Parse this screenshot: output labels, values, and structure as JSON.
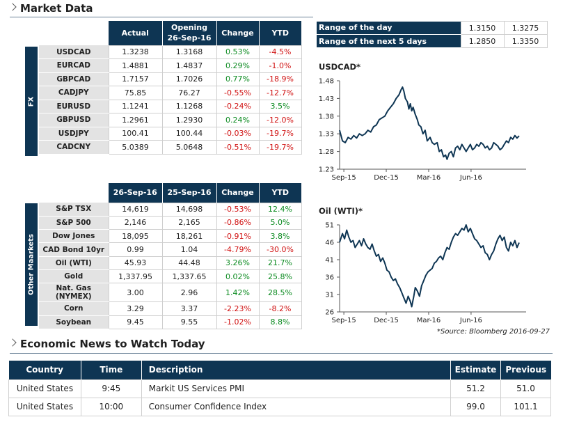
{
  "headings": {
    "market_data": "Market Data",
    "economic_news": "Economic News to Watch Today"
  },
  "colors": {
    "header_bg": "#0e3553",
    "label_bg": "#e3e3e3",
    "positive": "#0a8a1f",
    "negative": "#d01010"
  },
  "fx": {
    "side_label": "FX",
    "headers": {
      "actual": "Actual",
      "opening": "Opening",
      "opening_date": "26-Sep-16",
      "change": "Change",
      "ytd": "YTD"
    },
    "rows": [
      {
        "name": "USDCAD",
        "actual": "1.3238",
        "opening": "1.3168",
        "change": "0.53%",
        "ytd": "-4.5%"
      },
      {
        "name": "EURCAD",
        "actual": "1.4881",
        "opening": "1.4837",
        "change": "0.29%",
        "ytd": "-1.0%"
      },
      {
        "name": "GBPCAD",
        "actual": "1.7157",
        "opening": "1.7026",
        "change": "0.77%",
        "ytd": "-18.9%"
      },
      {
        "name": "CADJPY",
        "actual": "75.85",
        "opening": "76.27",
        "change": "-0.55%",
        "ytd": "-12.7%"
      },
      {
        "name": "EURUSD",
        "actual": "1.1241",
        "opening": "1.1268",
        "change": "-0.24%",
        "ytd": "3.5%"
      },
      {
        "name": "GBPUSD",
        "actual": "1.2961",
        "opening": "1.2930",
        "change": "0.24%",
        "ytd": "-12.0%"
      },
      {
        "name": "USDJPY",
        "actual": "100.41",
        "opening": "100.44",
        "change": "-0.03%",
        "ytd": "-19.7%"
      },
      {
        "name": "CADCNY",
        "actual": "5.0389",
        "opening": "5.0648",
        "change": "-0.51%",
        "ytd": "-19.7%"
      }
    ]
  },
  "other": {
    "side_label": "Other Maarkets",
    "headers": {
      "d1": "26-Sep-16",
      "d2": "25-Sep-16",
      "change": "Change",
      "ytd": "YTD"
    },
    "rows": [
      {
        "name": "S&P TSX",
        "d1": "14,619",
        "d2": "14,698",
        "change": "-0.53%",
        "ytd": "12.4%"
      },
      {
        "name": "S&P 500",
        "d1": "2,146",
        "d2": "2,165",
        "change": "-0.86%",
        "ytd": "5.0%"
      },
      {
        "name": "Dow Jones",
        "d1": "18,095",
        "d2": "18,261",
        "change": "-0.91%",
        "ytd": "3.8%"
      },
      {
        "name": "CAD Bond 10yr",
        "d1": "0.99",
        "d2": "1.04",
        "change": "-4.79%",
        "ytd": "-30.0%"
      },
      {
        "name": "Oil (WTI)",
        "d1": "45.93",
        "d2": "44.48",
        "change": "3.26%",
        "ytd": "21.7%"
      },
      {
        "name": "Gold",
        "d1": "1,337.95",
        "d2": "1,337.65",
        "change": "0.02%",
        "ytd": "25.8%"
      },
      {
        "name": "Nat. Gas (NYMEX)",
        "d1": "3.00",
        "d2": "2.96",
        "change": "1.42%",
        "ytd": "28.5%"
      },
      {
        "name": "Corn",
        "d1": "3.29",
        "d2": "3.37",
        "change": "-2.23%",
        "ytd": "-8.2%"
      },
      {
        "name": "Soybean",
        "d1": "9.45",
        "d2": "9.55",
        "change": "-1.02%",
        "ytd": "8.8%"
      }
    ]
  },
  "range": {
    "rows": [
      {
        "label": "Range of the day",
        "low": "1.3150",
        "high": "1.3275"
      },
      {
        "label": "Range of the next 5 days",
        "low": "1.2850",
        "high": "1.3350"
      }
    ]
  },
  "source_note": "*Source: Bloomberg  2016-09-27",
  "chart_data": [
    {
      "type": "line",
      "title": "USDCAD*",
      "xlabel": "",
      "ylabel": "",
      "x_ticks": [
        "Sep-15",
        "Dec-15",
        "Mar-16",
        "Jun-16"
      ],
      "y_ticks": [
        "1.48",
        "1.43",
        "1.38",
        "1.33",
        "1.28",
        "1.23"
      ],
      "ylim": [
        1.23,
        1.48
      ],
      "x_range": [
        0,
        12.8
      ],
      "grid": false,
      "series": [
        {
          "points": [
            [
              0,
              1.34
            ],
            [
              0.2,
              1.31
            ],
            [
              0.4,
              1.305
            ],
            [
              0.6,
              1.32
            ],
            [
              0.8,
              1.315
            ],
            [
              1.0,
              1.325
            ],
            [
              1.2,
              1.318
            ],
            [
              1.4,
              1.33
            ],
            [
              1.6,
              1.325
            ],
            [
              1.8,
              1.33
            ],
            [
              2.0,
              1.34
            ],
            [
              2.2,
              1.335
            ],
            [
              2.4,
              1.35
            ],
            [
              2.6,
              1.355
            ],
            [
              2.8,
              1.37
            ],
            [
              3.0,
              1.375
            ],
            [
              3.2,
              1.38
            ],
            [
              3.4,
              1.395
            ],
            [
              3.6,
              1.405
            ],
            [
              3.8,
              1.415
            ],
            [
              4.0,
              1.43
            ],
            [
              4.2,
              1.44
            ],
            [
              4.35,
              1.455
            ],
            [
              4.45,
              1.462
            ],
            [
              4.55,
              1.45
            ],
            [
              4.65,
              1.43
            ],
            [
              4.8,
              1.42
            ],
            [
              4.9,
              1.4
            ],
            [
              5.0,
              1.415
            ],
            [
              5.1,
              1.395
            ],
            [
              5.2,
              1.405
            ],
            [
              5.35,
              1.385
            ],
            [
              5.5,
              1.37
            ],
            [
              5.6,
              1.355
            ],
            [
              5.75,
              1.35
            ],
            [
              5.9,
              1.33
            ],
            [
              6.05,
              1.34
            ],
            [
              6.2,
              1.31
            ],
            [
              6.4,
              1.32
            ],
            [
              6.55,
              1.305
            ],
            [
              6.7,
              1.3
            ],
            [
              6.9,
              1.305
            ],
            [
              7.05,
              1.28
            ],
            [
              7.2,
              1.285
            ],
            [
              7.35,
              1.265
            ],
            [
              7.5,
              1.27
            ],
            [
              7.6,
              1.258
            ],
            [
              7.75,
              1.275
            ],
            [
              7.9,
              1.28
            ],
            [
              8.05,
              1.265
            ],
            [
              8.2,
              1.29
            ],
            [
              8.35,
              1.295
            ],
            [
              8.5,
              1.285
            ],
            [
              8.65,
              1.3
            ],
            [
              8.8,
              1.29
            ],
            [
              8.95,
              1.28
            ],
            [
              9.1,
              1.29
            ],
            [
              9.25,
              1.3
            ],
            [
              9.4,
              1.285
            ],
            [
              9.55,
              1.29
            ],
            [
              9.7,
              1.3
            ],
            [
              9.85,
              1.295
            ],
            [
              10.0,
              1.305
            ],
            [
              10.15,
              1.3
            ],
            [
              10.3,
              1.29
            ],
            [
              10.45,
              1.295
            ],
            [
              10.6,
              1.285
            ],
            [
              10.75,
              1.29
            ],
            [
              10.9,
              1.305
            ],
            [
              11.05,
              1.3
            ],
            [
              11.2,
              1.295
            ],
            [
              11.35,
              1.285
            ],
            [
              11.5,
              1.29
            ],
            [
              11.65,
              1.3
            ],
            [
              11.8,
              1.31
            ],
            [
              11.95,
              1.305
            ],
            [
              12.1,
              1.32
            ],
            [
              12.25,
              1.315
            ],
            [
              12.4,
              1.325
            ],
            [
              12.55,
              1.318
            ],
            [
              12.7,
              1.324
            ]
          ]
        }
      ]
    },
    {
      "type": "line",
      "title": "Oil (WTI)*",
      "xlabel": "",
      "ylabel": "",
      "x_ticks": [
        "Sep-15",
        "Dec-15",
        "Mar-16",
        "Jun-16"
      ],
      "y_ticks": [
        "51",
        "46",
        "41",
        "36",
        "31",
        "26"
      ],
      "ylim": [
        26,
        51
      ],
      "x_range": [
        0,
        12.8
      ],
      "grid": false,
      "series": [
        {
          "points": [
            [
              0,
              46.0
            ],
            [
              0.2,
              48.5
            ],
            [
              0.35,
              47.0
            ],
            [
              0.5,
              49.5
            ],
            [
              0.65,
              47.5
            ],
            [
              0.8,
              46.0
            ],
            [
              0.95,
              46.5
            ],
            [
              1.1,
              44.5
            ],
            [
              1.25,
              45.5
            ],
            [
              1.4,
              46.5
            ],
            [
              1.55,
              45.0
            ],
            [
              1.7,
              47.0
            ],
            [
              1.85,
              45.5
            ],
            [
              2.0,
              44.5
            ],
            [
              2.15,
              44.0
            ],
            [
              2.3,
              45.5
            ],
            [
              2.45,
              43.5
            ],
            [
              2.6,
              42.0
            ],
            [
              2.75,
              42.5
            ],
            [
              2.9,
              40.5
            ],
            [
              3.05,
              41.5
            ],
            [
              3.2,
              40.0
            ],
            [
              3.35,
              38.0
            ],
            [
              3.5,
              37.5
            ],
            [
              3.65,
              36.0
            ],
            [
              3.8,
              35.0
            ],
            [
              3.95,
              35.5
            ],
            [
              4.1,
              34.0
            ],
            [
              4.25,
              33.0
            ],
            [
              4.4,
              31.5
            ],
            [
              4.55,
              30.0
            ],
            [
              4.7,
              28.5
            ],
            [
              4.85,
              30.5
            ],
            [
              5.0,
              29.0
            ],
            [
              5.1,
              27.5
            ],
            [
              5.25,
              30.5
            ],
            [
              5.35,
              33.0
            ],
            [
              5.5,
              32.0
            ],
            [
              5.65,
              30.5
            ],
            [
              5.8,
              33.5
            ],
            [
              5.95,
              35.0
            ],
            [
              6.1,
              36.5
            ],
            [
              6.25,
              37.5
            ],
            [
              6.4,
              38.0
            ],
            [
              6.55,
              38.5
            ],
            [
              6.7,
              40.0
            ],
            [
              6.85,
              40.5
            ],
            [
              7.0,
              41.5
            ],
            [
              7.15,
              42.0
            ],
            [
              7.3,
              41.0
            ],
            [
              7.45,
              43.0
            ],
            [
              7.6,
              44.5
            ],
            [
              7.75,
              44.0
            ],
            [
              7.9,
              46.0
            ],
            [
              8.05,
              47.5
            ],
            [
              8.2,
              48.5
            ],
            [
              8.35,
              48.0
            ],
            [
              8.5,
              49.0
            ],
            [
              8.65,
              50.0
            ],
            [
              8.8,
              49.5
            ],
            [
              8.95,
              51.0
            ],
            [
              9.1,
              49.0
            ],
            [
              9.25,
              50.0
            ],
            [
              9.4,
              48.5
            ],
            [
              9.55,
              47.0
            ],
            [
              9.7,
              46.5
            ],
            [
              9.85,
              45.5
            ],
            [
              10.0,
              44.5
            ],
            [
              10.15,
              45.0
            ],
            [
              10.3,
              43.0
            ],
            [
              10.45,
              42.5
            ],
            [
              10.6,
              41.0
            ],
            [
              10.75,
              42.5
            ],
            [
              10.9,
              43.5
            ],
            [
              11.05,
              45.5
            ],
            [
              11.2,
              47.0
            ],
            [
              11.35,
              48.0
            ],
            [
              11.5,
              46.5
            ],
            [
              11.65,
              47.5
            ],
            [
              11.8,
              44.5
            ],
            [
              11.95,
              43.5
            ],
            [
              12.1,
              46.0
            ],
            [
              12.25,
              45.0
            ],
            [
              12.4,
              46.5
            ],
            [
              12.55,
              44.5
            ],
            [
              12.7,
              45.9
            ]
          ]
        }
      ]
    }
  ],
  "news": {
    "headers": {
      "country": "Country",
      "time": "Time",
      "description": "Description",
      "estimate": "Estimate",
      "previous": "Previous"
    },
    "rows": [
      {
        "country": "United States",
        "time": "9:45",
        "description": "Markit US Services PMI",
        "estimate": "51.2",
        "previous": "51.0"
      },
      {
        "country": "United States",
        "time": "10:00",
        "description": "Consumer Confidence Index",
        "estimate": "99.0",
        "previous": "101.1"
      }
    ]
  }
}
